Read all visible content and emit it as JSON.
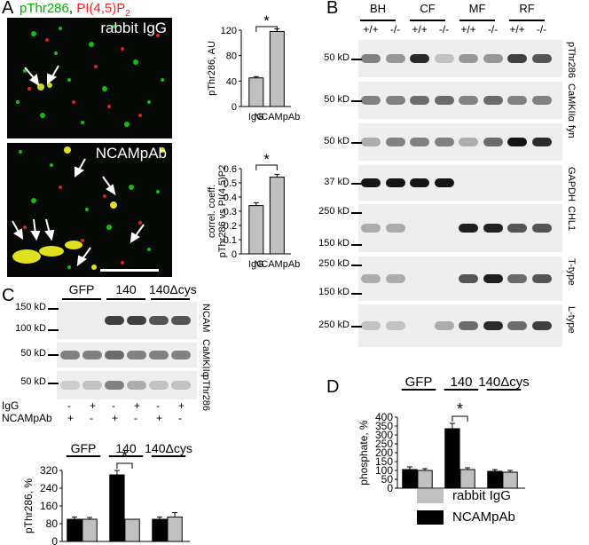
{
  "panelA": {
    "letter": "A",
    "stain_green": "pThr286",
    "stain_sep": ", ",
    "stain_red": "PI(4,5)P",
    "stain_red_sub": "2",
    "img1_label": "rabbit IgG",
    "img2_label": "NCAMpAb",
    "colors": {
      "green": "#00b400",
      "red": "#ff2020",
      "bar": "#c0c0c0"
    }
  },
  "chart_data": [
    {
      "type": "bar",
      "categories": [
        "IgG",
        "NCAMpAb"
      ],
      "values": [
        45,
        118
      ],
      "errors": [
        2,
        4
      ],
      "ylabel": "pThr286, AU",
      "ylim": [
        0,
        120
      ],
      "yticks": [
        0,
        40,
        80,
        120
      ],
      "significance": "*"
    },
    {
      "type": "bar",
      "categories": [
        "IgG",
        "NCAMpAb"
      ],
      "values": [
        0.34,
        0.54
      ],
      "errors": [
        0.02,
        0.02
      ],
      "ylabel_line1": "correl. coeff.",
      "ylabel_line2": "pThr286 vs PI(4,5)P2",
      "ylim": [
        0,
        0.6
      ],
      "yticks": [
        0.0,
        0.1,
        0.2,
        0.3,
        0.4,
        0.5,
        0.6
      ],
      "significance": "*"
    },
    {
      "type": "bar",
      "groups": [
        "GFP",
        "140",
        "140Δcys"
      ],
      "series": [
        {
          "name": "IgG",
          "values": [
            100,
            100,
            110
          ],
          "errors": [
            8,
            0,
            20
          ]
        },
        {
          "name": "NCAMpAb",
          "values": [
            100,
            300,
            100
          ],
          "errors": [
            10,
            20,
            10
          ]
        }
      ],
      "ylabel": "pThr286, %",
      "ylim": [
        0,
        320
      ],
      "yticks": [
        0,
        80,
        160,
        240,
        320
      ],
      "significance": "*"
    },
    {
      "type": "bar",
      "groups": [
        "GFP",
        "140",
        "140Δcys"
      ],
      "series": [
        {
          "name": "rabbit IgG",
          "values": [
            100,
            105,
            90
          ],
          "errors": [
            10,
            10,
            10
          ]
        },
        {
          "name": "NCAMpAb",
          "values": [
            105,
            335,
            95
          ],
          "errors": [
            15,
            30,
            10
          ]
        }
      ],
      "ylabel": "phosphate, %",
      "ylim": [
        0,
        400
      ],
      "yticks": [
        0,
        50,
        100,
        150,
        200,
        250,
        300,
        350,
        400
      ],
      "significance": "*"
    }
  ],
  "panelB": {
    "letter": "B",
    "lanes": [
      "BH",
      "CF",
      "MF",
      "RF"
    ],
    "genotypes": [
      "+/+",
      "-/-",
      "+/+",
      "-/-",
      "+/+",
      "-/-",
      "+/+",
      "-/-"
    ],
    "rows": [
      {
        "mw": [
          "50 kD"
        ],
        "label": "pThr286"
      },
      {
        "mw": [
          "50 kD"
        ],
        "label": "CaMKIIα"
      },
      {
        "mw": [
          "50 kD"
        ],
        "label": "fyn"
      },
      {
        "mw": [
          "37 kD"
        ],
        "label": "GAPDH"
      },
      {
        "mw": [
          "250 kD",
          "150 kD"
        ],
        "label": "CHL1"
      },
      {
        "mw": [
          "250 kD",
          "150 kD"
        ],
        "label": "T-type"
      },
      {
        "mw": [
          "250 kD"
        ],
        "label": "L-type"
      }
    ]
  },
  "panelC": {
    "letter": "C",
    "lanes": [
      "GFP",
      "140",
      "140Δcys"
    ],
    "mw1": [
      "150 kD",
      "100 kD"
    ],
    "mw2": "50 kD",
    "mw3": "50 kD",
    "label1": "NCAM",
    "label2": "CaMKIIα",
    "label3": "pThr286",
    "row_igg": "IgG",
    "row_ncam": "NCAMpAb",
    "igg_signs": [
      "-",
      "+",
      "-",
      "+",
      "-",
      "+"
    ],
    "ncam_signs": [
      "+",
      "-",
      "+",
      "-",
      "+",
      "-"
    ]
  },
  "panelD": {
    "letter": "D",
    "legend_igg": "rabbit IgG",
    "legend_ncam": "NCAMpAb"
  }
}
